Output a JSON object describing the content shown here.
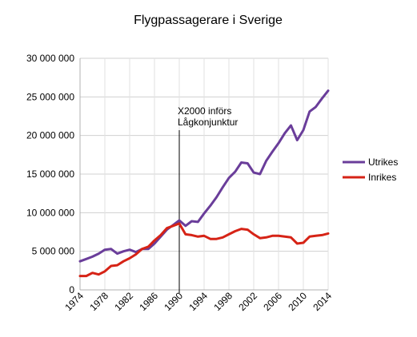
{
  "chart_data": {
    "type": "line",
    "title": "Flygpassagerare i Sverige",
    "xlim": [
      1974,
      2014
    ],
    "ylim": [
      0,
      30000000
    ],
    "yticks": [
      {
        "value": 0,
        "label": "0"
      },
      {
        "value": 5000000,
        "label": "5 000 000"
      },
      {
        "value": 10000000,
        "label": "10 000 000"
      },
      {
        "value": 15000000,
        "label": "15 000 000"
      },
      {
        "value": 20000000,
        "label": "20 000 000"
      },
      {
        "value": 25000000,
        "label": "25 000 000"
      },
      {
        "value": 30000000,
        "label": "30 000 000"
      }
    ],
    "xticks": [
      {
        "value": 1974,
        "label": "1974"
      },
      {
        "value": 1978,
        "label": "1978"
      },
      {
        "value": 1982,
        "label": "1982"
      },
      {
        "value": 1986,
        "label": "1986"
      },
      {
        "value": 1990,
        "label": "1990"
      },
      {
        "value": 1994,
        "label": "1994"
      },
      {
        "value": 1998,
        "label": "1998"
      },
      {
        "value": 2002,
        "label": "2002"
      },
      {
        "value": 2006,
        "label": "2006"
      },
      {
        "value": 2010,
        "label": "2010"
      },
      {
        "value": 2014,
        "label": "2014"
      }
    ],
    "grid": true,
    "legend_position": "right",
    "annotation": {
      "x": 1990,
      "lines": [
        "X2000 införs",
        "Lågkonjunktur"
      ]
    },
    "x": [
      1974,
      1975,
      1976,
      1977,
      1978,
      1979,
      1980,
      1981,
      1982,
      1983,
      1984,
      1985,
      1986,
      1987,
      1988,
      1989,
      1990,
      1991,
      1992,
      1993,
      1994,
      1995,
      1996,
      1997,
      1998,
      1999,
      2000,
      2001,
      2002,
      2003,
      2004,
      2005,
      2006,
      2007,
      2008,
      2009,
      2010,
      2011,
      2012,
      2013,
      2014
    ],
    "series": [
      {
        "name": "Utrikes",
        "color": "#6a3d9a",
        "values": [
          3700000,
          4000000,
          4300000,
          4700000,
          5200000,
          5300000,
          4700000,
          5000000,
          5200000,
          4900000,
          5300000,
          5300000,
          6000000,
          6900000,
          7800000,
          8400000,
          9000000,
          8300000,
          8900000,
          8800000,
          9900000,
          10900000,
          12000000,
          13300000,
          14500000,
          15300000,
          16500000,
          16400000,
          15200000,
          15000000,
          16700000,
          17900000,
          19000000,
          20300000,
          21300000,
          19400000,
          20700000,
          23100000,
          23700000,
          24800000,
          25800000
        ]
      },
      {
        "name": "Inrikes",
        "color": "#d62316",
        "values": [
          1800000,
          1800000,
          2200000,
          2000000,
          2400000,
          3100000,
          3200000,
          3700000,
          4100000,
          4600000,
          5300000,
          5600000,
          6400000,
          7100000,
          8000000,
          8300000,
          8600000,
          7200000,
          7100000,
          6900000,
          7000000,
          6600000,
          6600000,
          6800000,
          7200000,
          7600000,
          7900000,
          7800000,
          7200000,
          6700000,
          6800000,
          7000000,
          7000000,
          6900000,
          6800000,
          6000000,
          6100000,
          6900000,
          7000000,
          7100000,
          7300000
        ]
      }
    ]
  }
}
